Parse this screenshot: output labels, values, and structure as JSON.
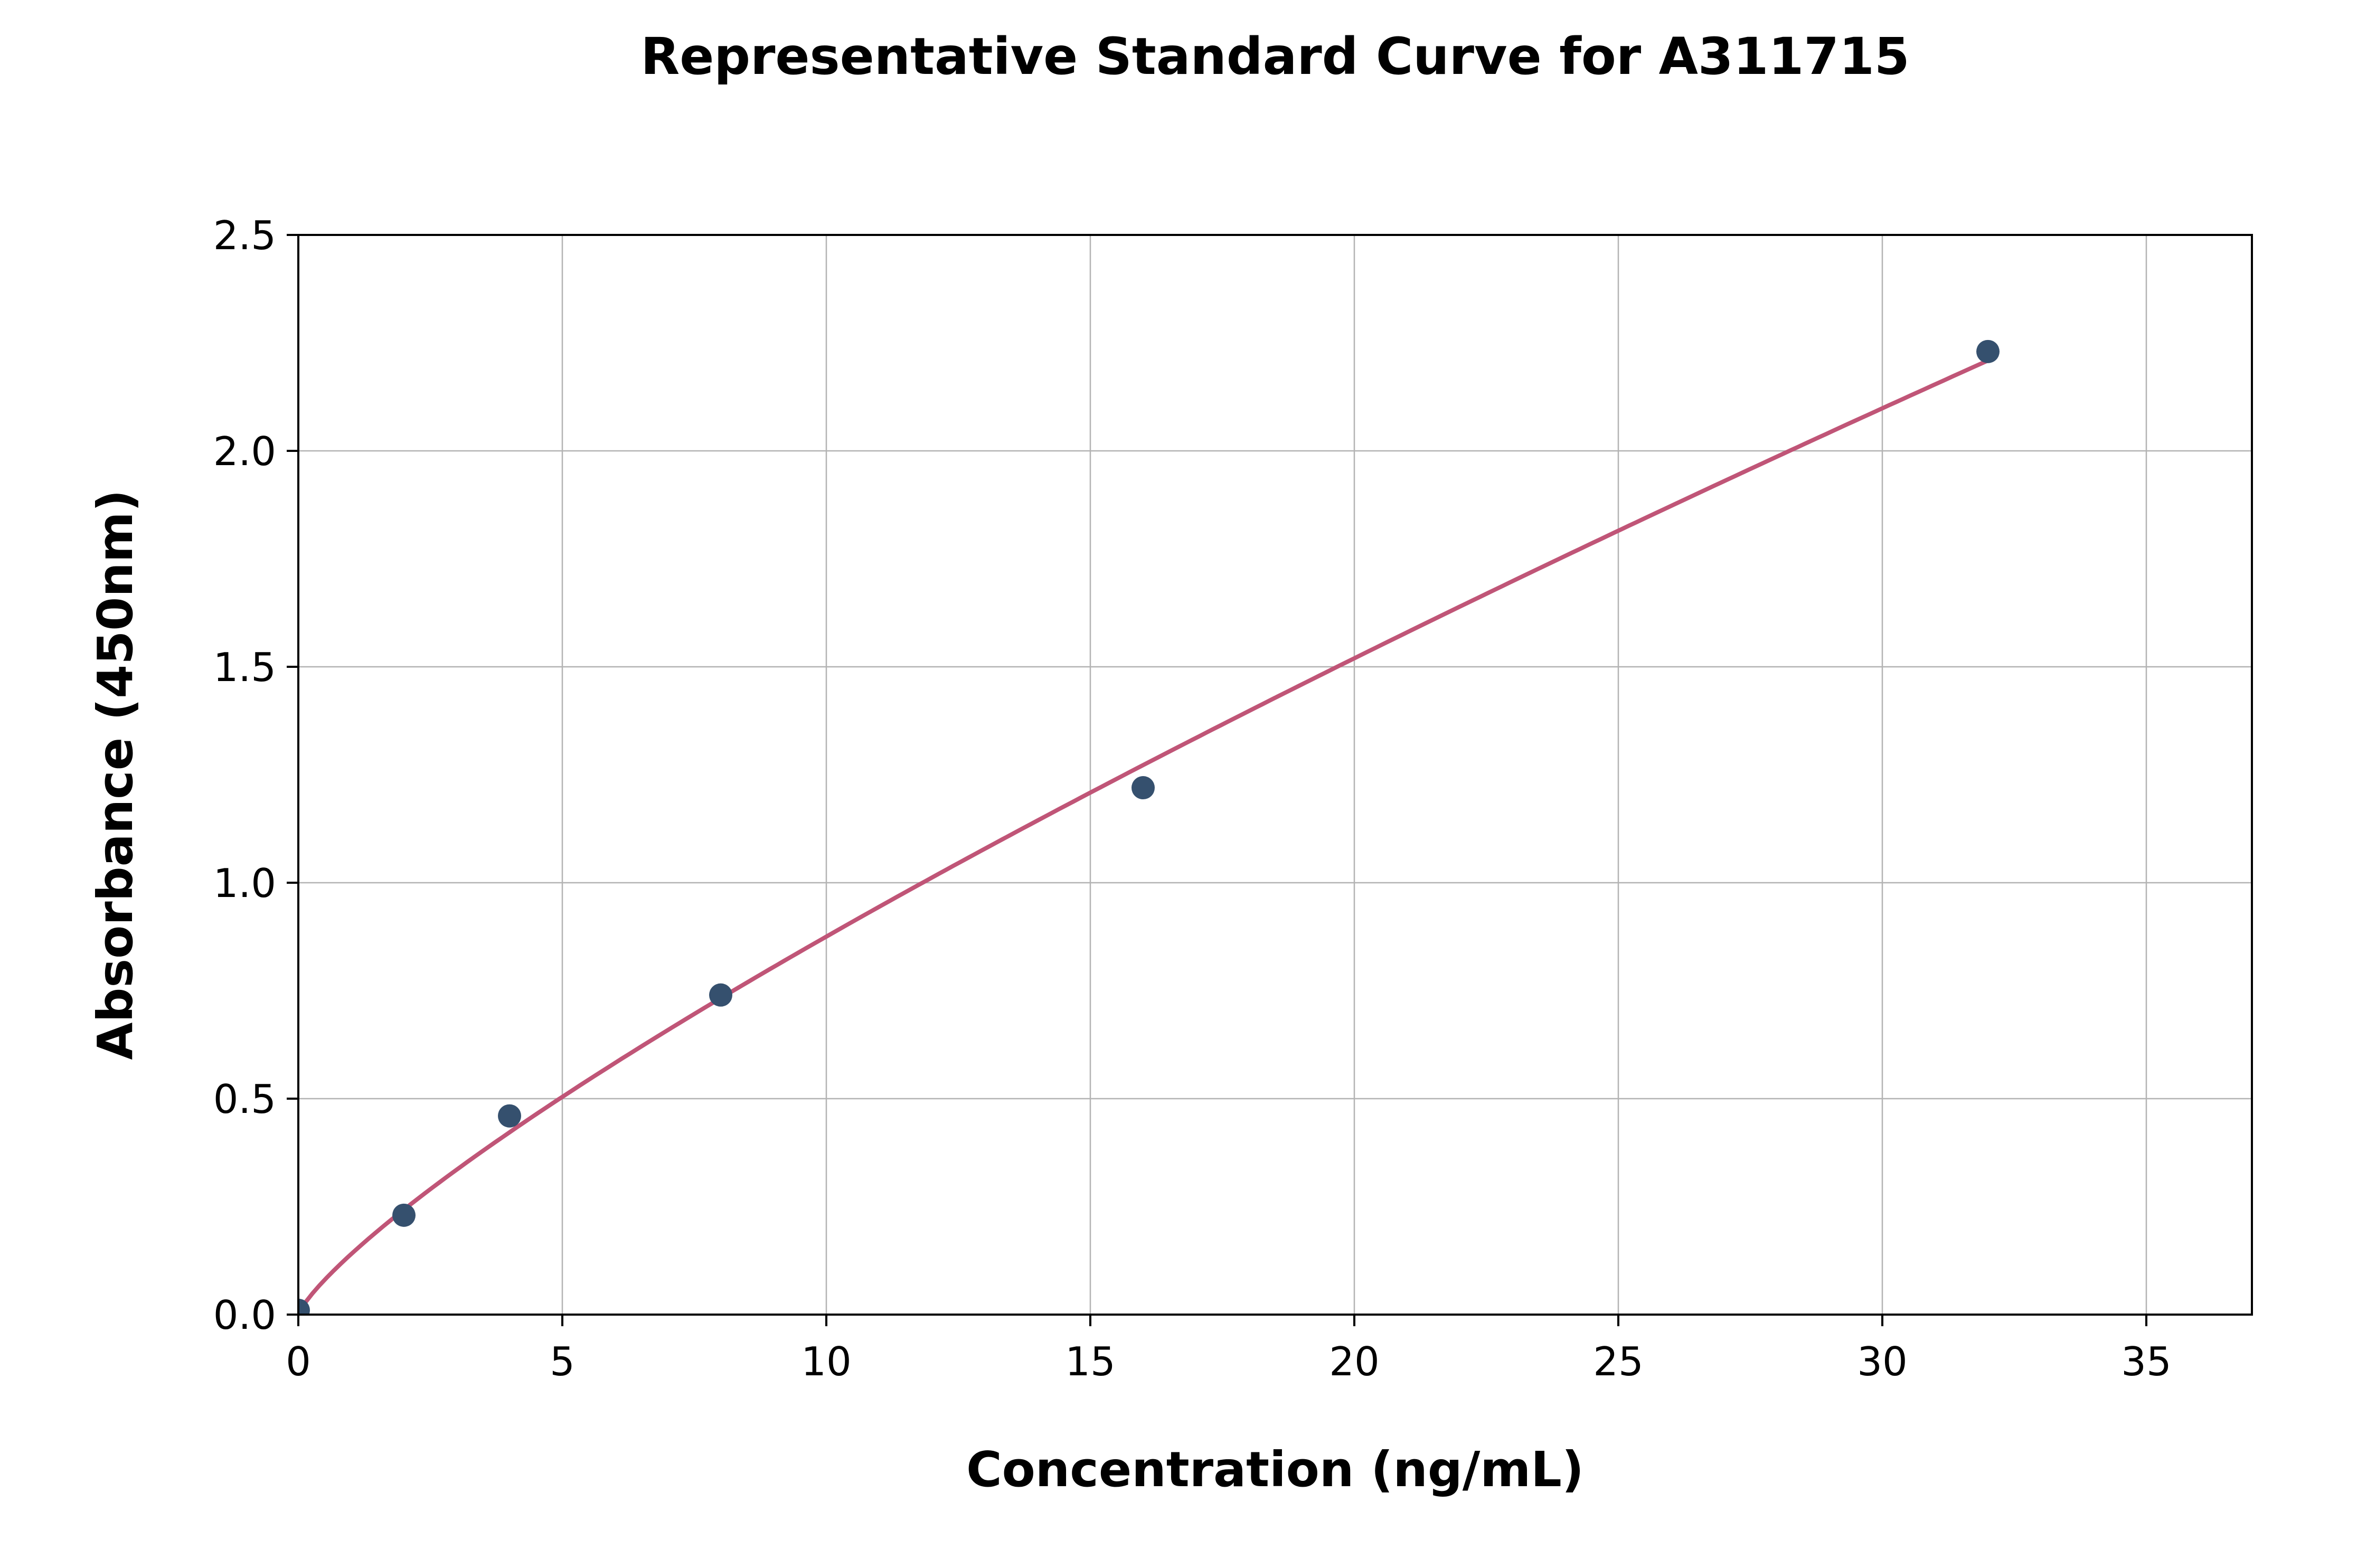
{
  "figure_title": "Representative Standard Curve for A311715",
  "chart_data": {
    "type": "scatter",
    "title": "Representative Standard Curve for A311715",
    "xlabel": "Concentration (ng/mL)",
    "ylabel": "Absorbance (450nm)",
    "xlim": [
      0,
      37
    ],
    "ylim": [
      0,
      2.5
    ],
    "grid": true,
    "legend": "none",
    "x_ticks": {
      "values": [
        0,
        5,
        10,
        15,
        20,
        25,
        30,
        35
      ],
      "labels": [
        "0",
        "5",
        "10",
        "15",
        "20",
        "25",
        "30",
        "35"
      ]
    },
    "y_ticks": {
      "values": [
        0,
        0.5,
        1,
        1.5,
        2,
        2.5
      ],
      "labels": [
        "0.0",
        "0.5",
        "1.0",
        "1.5",
        "2.0",
        "2.5"
      ]
    },
    "points": {
      "x": [
        0,
        2,
        4,
        8,
        16,
        32
      ],
      "y": [
        0.01,
        0.23,
        0.46,
        0.74,
        1.22,
        2.23
      ]
    },
    "fit_curve": {
      "model": "power",
      "a": 0.14,
      "b": 0.796,
      "x_start": 0,
      "x_end": 32
    },
    "colors": {
      "points": "#35506e",
      "curve": "#c05577",
      "grid": "#b3b3b3",
      "axes": "#000000",
      "background": "#ffffff"
    }
  }
}
